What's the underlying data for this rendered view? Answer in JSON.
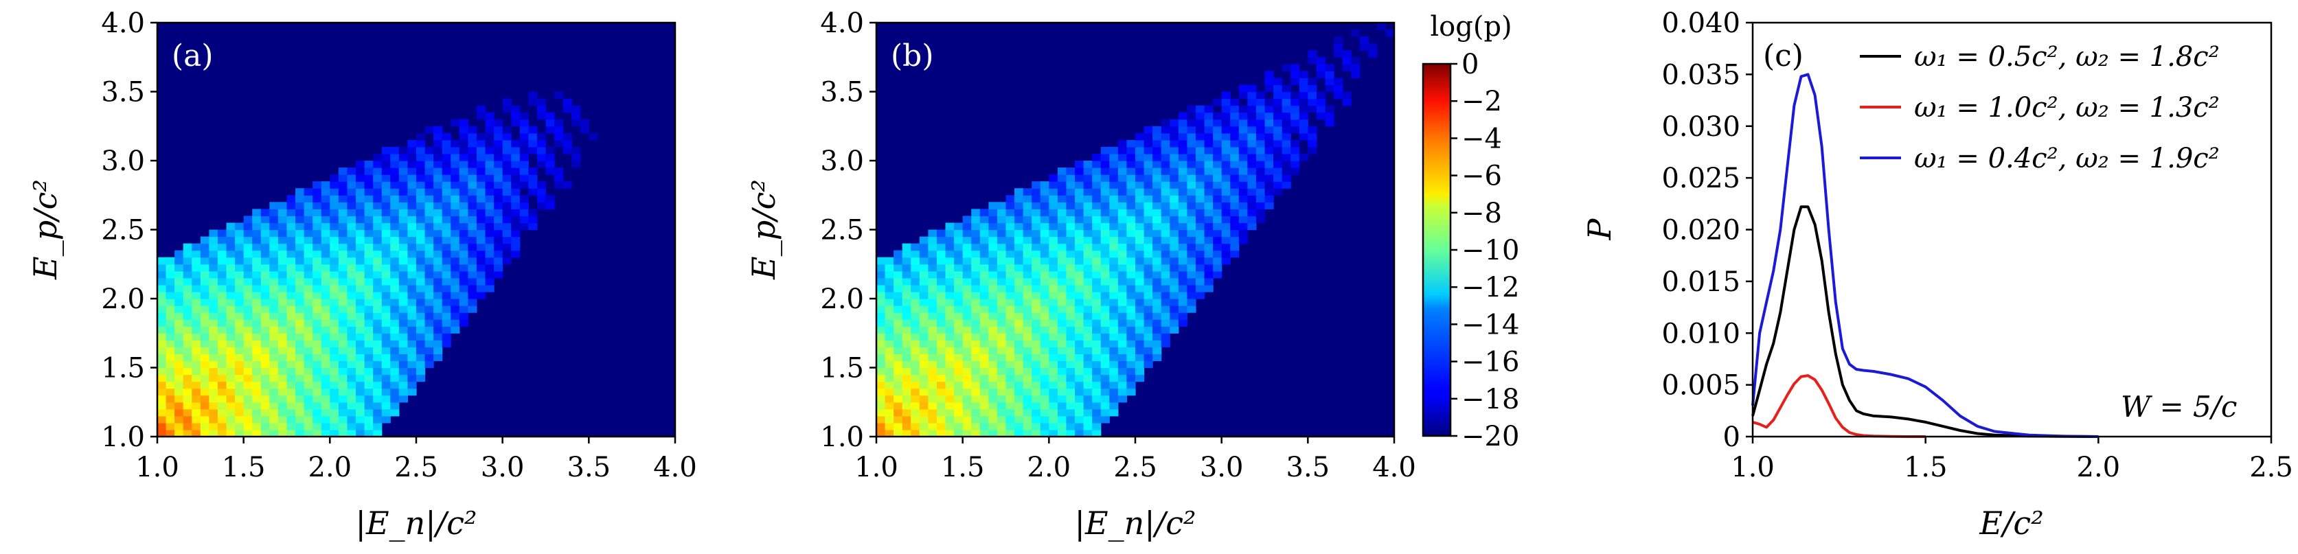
{
  "chart_data": [
    {
      "type": "heatmap",
      "panel_label": "(a)",
      "xlabel": "|E_n|/c²",
      "ylabel": "E_p/c²",
      "xlim": [
        1.0,
        4.0
      ],
      "ylim": [
        1.0,
        4.0
      ],
      "xticks": [
        "1.0",
        "1.5",
        "2.0",
        "2.5",
        "3.0",
        "3.5",
        "4.0"
      ],
      "yticks": [
        "1.0",
        "1.5",
        "2.0",
        "2.5",
        "3.0",
        "3.5",
        "4.0"
      ],
      "description_params": {
        "band_extent": 3.4,
        "peak_log_p": -5,
        "stripe_slope": -1
      },
      "colorbar_label": "log(p)"
    },
    {
      "type": "heatmap",
      "panel_label": "(b)",
      "xlabel": "|E_n|/c²",
      "ylabel": "E_p/c²",
      "xlim": [
        1.0,
        4.0
      ],
      "ylim": [
        1.0,
        4.0
      ],
      "xticks": [
        "1.0",
        "1.5",
        "2.0",
        "2.5",
        "3.0",
        "3.5",
        "4.0"
      ],
      "yticks": [
        "1.0",
        "1.5",
        "2.0",
        "2.5",
        "3.0",
        "3.5",
        "4.0"
      ],
      "description_params": {
        "band_extent": 4.0,
        "peak_log_p": -6,
        "stripe_slope": -1
      },
      "colorbar_label": "log(p)"
    },
    {
      "type": "colorbar",
      "label": "log(p)",
      "range": [
        -20,
        0
      ],
      "ticks": [
        "0",
        "−2",
        "−4",
        "−6",
        "−8",
        "−10",
        "−12",
        "−14",
        "−16",
        "−18",
        "−20"
      ],
      "tick_values": [
        0,
        -2,
        -4,
        -6,
        -8,
        -10,
        -12,
        -14,
        -16,
        -18,
        -20
      ]
    },
    {
      "type": "line",
      "panel_label": "(c)",
      "xlabel": "E/c²",
      "ylabel": "P",
      "xlim": [
        1.0,
        2.5
      ],
      "ylim": [
        0,
        0.04
      ],
      "xticks": [
        "1.0",
        "1.5",
        "2.0",
        "2.5"
      ],
      "yticks": [
        "0",
        "0.005",
        "0.010",
        "0.015",
        "0.020",
        "0.025",
        "0.030",
        "0.035",
        "0.040"
      ],
      "annotation": "W = 5/c",
      "legend_position": "top-right",
      "series": [
        {
          "name": "ω₁ = 0.5c², ω₂ = 1.8c²",
          "color": "#000000",
          "x": [
            1.0,
            1.02,
            1.04,
            1.06,
            1.08,
            1.1,
            1.12,
            1.14,
            1.16,
            1.18,
            1.2,
            1.22,
            1.24,
            1.26,
            1.28,
            1.3,
            1.32,
            1.35,
            1.4,
            1.45,
            1.5,
            1.55,
            1.6,
            1.65,
            1.7,
            1.8,
            1.9,
            2.0
          ],
          "y": [
            0.002,
            0.0045,
            0.007,
            0.009,
            0.012,
            0.016,
            0.02,
            0.0222,
            0.0222,
            0.0205,
            0.017,
            0.012,
            0.008,
            0.005,
            0.0035,
            0.0025,
            0.0022,
            0.002,
            0.0019,
            0.0017,
            0.0014,
            0.001,
            0.0006,
            0.0003,
            0.00015,
            5e-05,
            2e-05,
            0.0
          ]
        },
        {
          "name": "ω₁ = 1.0c², ω₂ = 1.3c²",
          "color": "#e8201a",
          "x": [
            1.0,
            1.02,
            1.04,
            1.06,
            1.08,
            1.1,
            1.12,
            1.14,
            1.16,
            1.18,
            1.2,
            1.22,
            1.24,
            1.26,
            1.28,
            1.3,
            1.32,
            1.35,
            1.4,
            1.45,
            1.5
          ],
          "y": [
            0.0014,
            0.0012,
            0.0009,
            0.0016,
            0.0028,
            0.004,
            0.0051,
            0.0058,
            0.0059,
            0.0055,
            0.0045,
            0.0032,
            0.0018,
            0.0009,
            0.0004,
            0.0002,
            0.0001,
            5e-05,
            2e-05,
            0.0,
            0.0
          ]
        },
        {
          "name": "ω₁ = 0.4c², ω₂ = 1.9c²",
          "color": "#1a1ad8",
          "x": [
            1.0,
            1.02,
            1.04,
            1.06,
            1.08,
            1.1,
            1.12,
            1.14,
            1.16,
            1.18,
            1.2,
            1.22,
            1.24,
            1.26,
            1.28,
            1.3,
            1.32,
            1.35,
            1.4,
            1.45,
            1.5,
            1.55,
            1.6,
            1.65,
            1.7,
            1.8,
            1.9,
            2.0
          ],
          "y": [
            0.003,
            0.01,
            0.013,
            0.016,
            0.02,
            0.026,
            0.032,
            0.0348,
            0.035,
            0.033,
            0.028,
            0.02,
            0.013,
            0.0085,
            0.007,
            0.0065,
            0.0064,
            0.0063,
            0.006,
            0.0056,
            0.0048,
            0.0035,
            0.002,
            0.001,
            0.0005,
            0.00015,
            4e-05,
            0.0
          ]
        }
      ]
    }
  ]
}
